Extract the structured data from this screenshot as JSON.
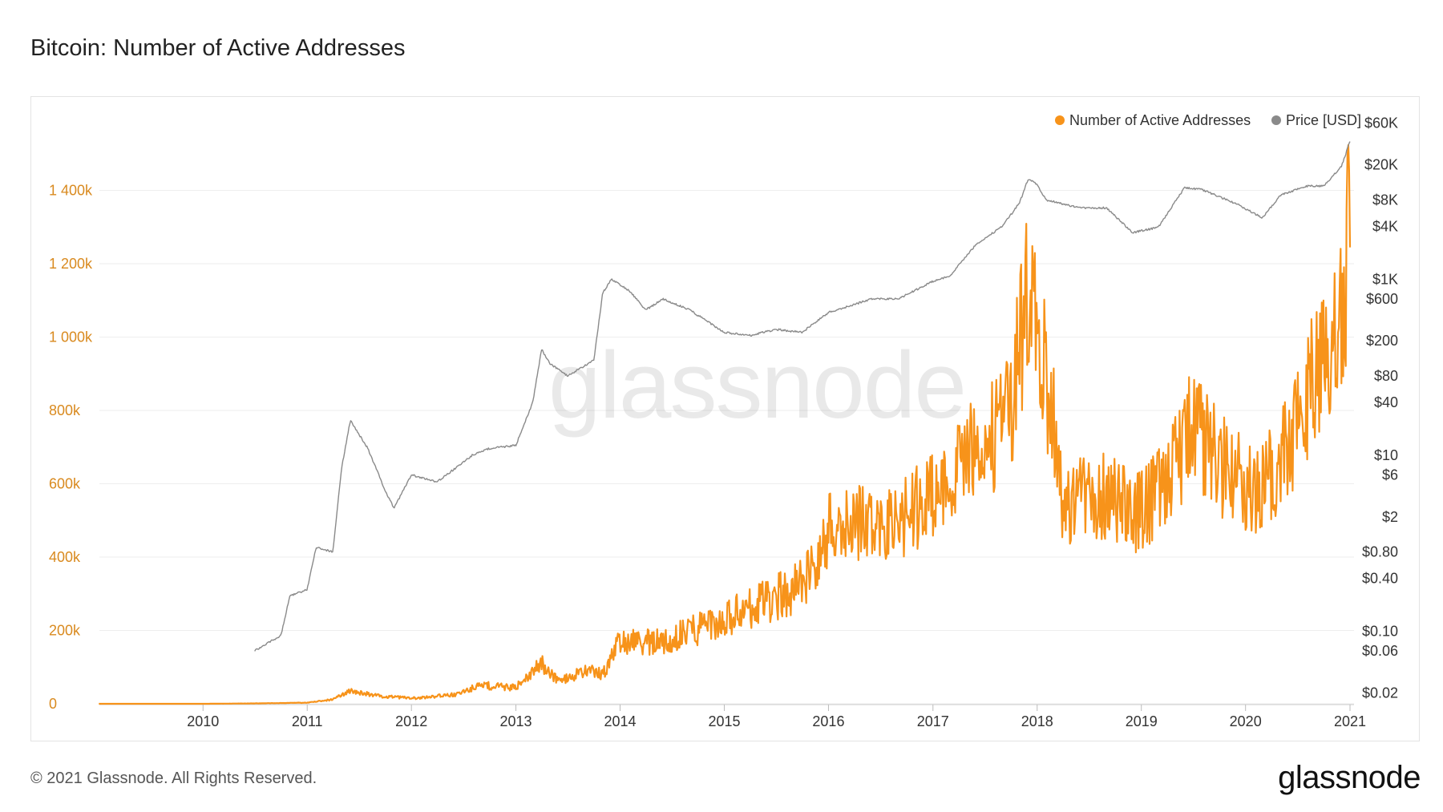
{
  "title": "Bitcoin: Number of Active Addresses",
  "footer": "© 2021 Glassnode. All Rights Reserved.",
  "brand": "glassnode",
  "watermark": "glassnode",
  "colors": {
    "addresses": "#f7931a",
    "price": "#8a8a8a",
    "left_axis_text": "#d98a1f"
  },
  "chart_data": {
    "type": "line",
    "x_axis": {
      "label": "",
      "ticks": [
        "2010",
        "2011",
        "2012",
        "2013",
        "2014",
        "2015",
        "2016",
        "2017",
        "2018",
        "2019",
        "2020",
        "2021"
      ],
      "range": [
        "2009-01-03",
        "2021-01-15"
      ]
    },
    "y_left": {
      "label": "",
      "range": [
        0,
        1600000
      ],
      "ticks": [
        "0",
        "200k",
        "400k",
        "600k",
        "800k",
        "1 000k",
        "1 200k",
        "1 400k"
      ]
    },
    "y_right": {
      "label": "",
      "scale": "log",
      "range": [
        0.015,
        70000
      ],
      "ticks": [
        "$60K",
        "$20K",
        "$8K",
        "$4K",
        "$1K",
        "$600",
        "$200",
        "$80",
        "$40",
        "$10",
        "$6",
        "$2",
        "$0.80",
        "$0.40",
        "$0.10",
        "$0.06",
        "$0.02"
      ]
    },
    "legend": {
      "placement": "top-right"
    },
    "grid": true,
    "series": [
      {
        "name": "Number of Active Addresses",
        "axis": "left",
        "x": [
          "2009-01",
          "2010-01",
          "2010-07",
          "2011-01",
          "2011-04",
          "2011-06",
          "2011-09",
          "2012-01",
          "2012-06",
          "2012-09",
          "2013-01",
          "2013-04",
          "2013-06",
          "2013-09",
          "2013-11",
          "2014-01",
          "2014-06",
          "2014-12",
          "2015-06",
          "2015-09",
          "2015-12",
          "2016-01",
          "2016-04",
          "2016-07",
          "2016-10",
          "2017-01",
          "2017-03",
          "2017-05",
          "2017-08",
          "2017-10",
          "2017-12",
          "2018-01",
          "2018-03",
          "2018-04",
          "2018-07",
          "2018-10",
          "2019-01",
          "2019-04",
          "2019-07",
          "2019-10",
          "2020-01",
          "2020-03",
          "2020-06",
          "2020-09",
          "2020-11",
          "2020-12",
          "2021-01"
        ],
        "values": [
          0,
          0,
          1000,
          3000,
          12000,
          35000,
          22000,
          15000,
          25000,
          50000,
          45000,
          110000,
          60000,
          90000,
          80000,
          170000,
          170000,
          220000,
          280000,
          310000,
          380000,
          480000,
          500000,
          470000,
          520000,
          560000,
          650000,
          700000,
          730000,
          800000,
          1150000,
          1050000,
          750000,
          550000,
          580000,
          560000,
          520000,
          620000,
          760000,
          650000,
          600000,
          580000,
          700000,
          900000,
          950000,
          1050000,
          1300000
        ]
      },
      {
        "name": "Price [USD]",
        "axis": "right",
        "x": [
          "2010-07",
          "2010-10",
          "2010-11",
          "2011-01",
          "2011-02",
          "2011-04",
          "2011-05",
          "2011-06",
          "2011-08",
          "2011-10",
          "2011-11",
          "2012-01",
          "2012-04",
          "2012-08",
          "2012-10",
          "2013-01",
          "2013-03",
          "2013-04",
          "2013-05",
          "2013-07",
          "2013-10",
          "2013-11",
          "2013-12",
          "2014-02",
          "2014-04",
          "2014-06",
          "2014-09",
          "2015-01",
          "2015-04",
          "2015-07",
          "2015-10",
          "2016-01",
          "2016-06",
          "2016-09",
          "2017-01",
          "2017-03",
          "2017-06",
          "2017-09",
          "2017-11",
          "2017-12",
          "2018-01",
          "2018-02",
          "2018-06",
          "2018-09",
          "2018-12",
          "2019-03",
          "2019-06",
          "2019-08",
          "2019-12",
          "2020-03",
          "2020-05",
          "2020-08",
          "2020-10",
          "2020-12",
          "2021-01"
        ],
        "values": [
          0.06,
          0.09,
          0.25,
          0.3,
          0.9,
          0.8,
          7,
          25,
          12,
          4,
          2.5,
          6,
          5,
          10,
          12,
          13,
          40,
          160,
          110,
          80,
          120,
          700,
          1000,
          750,
          450,
          600,
          450,
          250,
          230,
          270,
          250,
          420,
          600,
          600,
          950,
          1100,
          2500,
          4000,
          7500,
          14000,
          12000,
          8000,
          6500,
          6500,
          3400,
          3900,
          11000,
          10500,
          7200,
          5000,
          9000,
          11500,
          11500,
          19000,
          37000
        ]
      }
    ]
  }
}
